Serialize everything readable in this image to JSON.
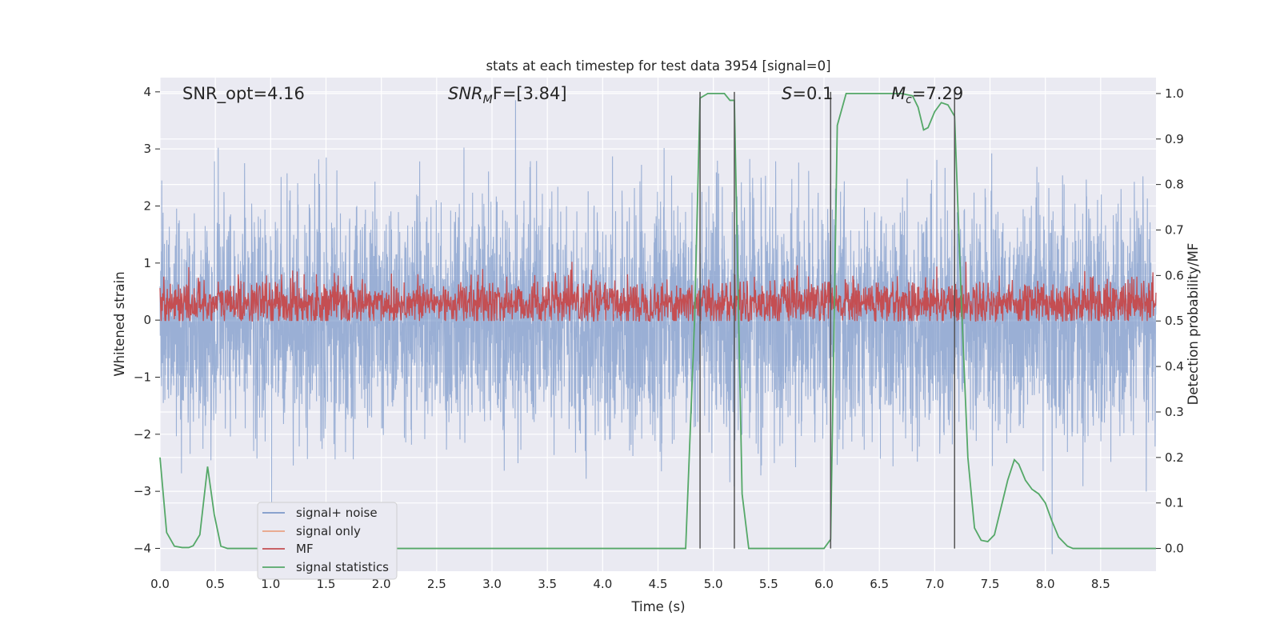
{
  "chart_data": {
    "type": "line",
    "title": "stats at each timestep for test data 3954 [signal=0]",
    "xlabel": "Time (s)",
    "ylabel_left": "Whitened strain",
    "ylabel_right": "Detection probability/MF",
    "xlim": [
      0.0,
      9.0
    ],
    "ylim_left": [
      -4.4,
      4.25
    ],
    "ylim_right": [
      -0.05,
      1.035
    ],
    "x_ticks": [
      "0.0",
      "0.5",
      "1.0",
      "1.5",
      "2.0",
      "2.5",
      "3.0",
      "3.5",
      "4.0",
      "4.5",
      "5.0",
      "5.5",
      "6.0",
      "6.5",
      "7.0",
      "7.5",
      "8.0",
      "8.5"
    ],
    "y_left_ticks": [
      "−4",
      "−3",
      "−2",
      "−1",
      "0",
      "1",
      "2",
      "3",
      "4"
    ],
    "y_right_ticks": [
      "0.0",
      "0.1",
      "0.2",
      "0.3",
      "0.4",
      "0.5",
      "0.6",
      "0.7",
      "0.8",
      "0.9",
      "1.0"
    ],
    "grid": true,
    "legend_position": "lower-left",
    "annotations": {
      "snr_opt": "SNR_opt=4.16",
      "snr_mf_main": "SNR",
      "snr_mf_sub": "M",
      "snr_mf_rest": "F=[3.84]",
      "s_italic": "S",
      "s_rest": "=0.1",
      "mc_main": "M",
      "mc_sub": "c",
      "mc_rest": "=7.29"
    },
    "vertical_markers": [
      4.88,
      5.19,
      6.06,
      7.18
    ],
    "series": [
      {
        "name": "signal+ noise",
        "axis": "left",
        "color": "#7c98c9",
        "description_values": {
          "amplitude_std": 1.0,
          "range": [
            -4.1,
            3.9
          ]
        }
      },
      {
        "name": "signal only",
        "axis": "left",
        "color": "#e9a285",
        "values": []
      },
      {
        "name": "MF",
        "axis": "right",
        "color": "#c44e52",
        "description_values": {
          "center": 0.54,
          "range": [
            0.5,
            0.63
          ]
        }
      },
      {
        "name": "signal statistics",
        "axis": "right",
        "color": "#55a868",
        "x": [
          0.0,
          0.06,
          0.13,
          0.2,
          0.26,
          0.3,
          0.36,
          0.43,
          0.49,
          0.55,
          0.61,
          0.68,
          1.0,
          2.0,
          3.0,
          4.0,
          4.5,
          4.75,
          4.83,
          4.88,
          4.95,
          5.0,
          5.1,
          5.15,
          5.19,
          5.26,
          5.32,
          5.5,
          6.0,
          6.06,
          6.12,
          6.2,
          6.7,
          6.8,
          6.85,
          6.9,
          6.94,
          7.0,
          7.06,
          7.12,
          7.18,
          7.24,
          7.3,
          7.36,
          7.42,
          7.48,
          7.54,
          7.6,
          7.66,
          7.72,
          7.76,
          7.82,
          7.88,
          7.94,
          8.0,
          8.06,
          8.12,
          8.2,
          8.25,
          8.3,
          8.5,
          9.0
        ],
        "values": [
          0.2,
          0.035,
          0.005,
          0.002,
          0.002,
          0.006,
          0.03,
          0.18,
          0.075,
          0.005,
          0.0,
          0.0,
          0.0,
          0.0,
          0.0,
          0.0,
          0.0,
          0.0,
          0.5,
          0.99,
          1.0,
          1.0,
          1.0,
          0.985,
          0.985,
          0.12,
          0.0,
          0.0,
          0.0,
          0.02,
          0.93,
          1.0,
          1.0,
          0.995,
          0.97,
          0.92,
          0.925,
          0.96,
          0.98,
          0.975,
          0.95,
          0.55,
          0.2,
          0.045,
          0.018,
          0.015,
          0.03,
          0.09,
          0.15,
          0.195,
          0.185,
          0.15,
          0.13,
          0.12,
          0.1,
          0.06,
          0.025,
          0.005,
          0.0,
          0.0,
          0.0,
          0.0
        ]
      }
    ]
  }
}
